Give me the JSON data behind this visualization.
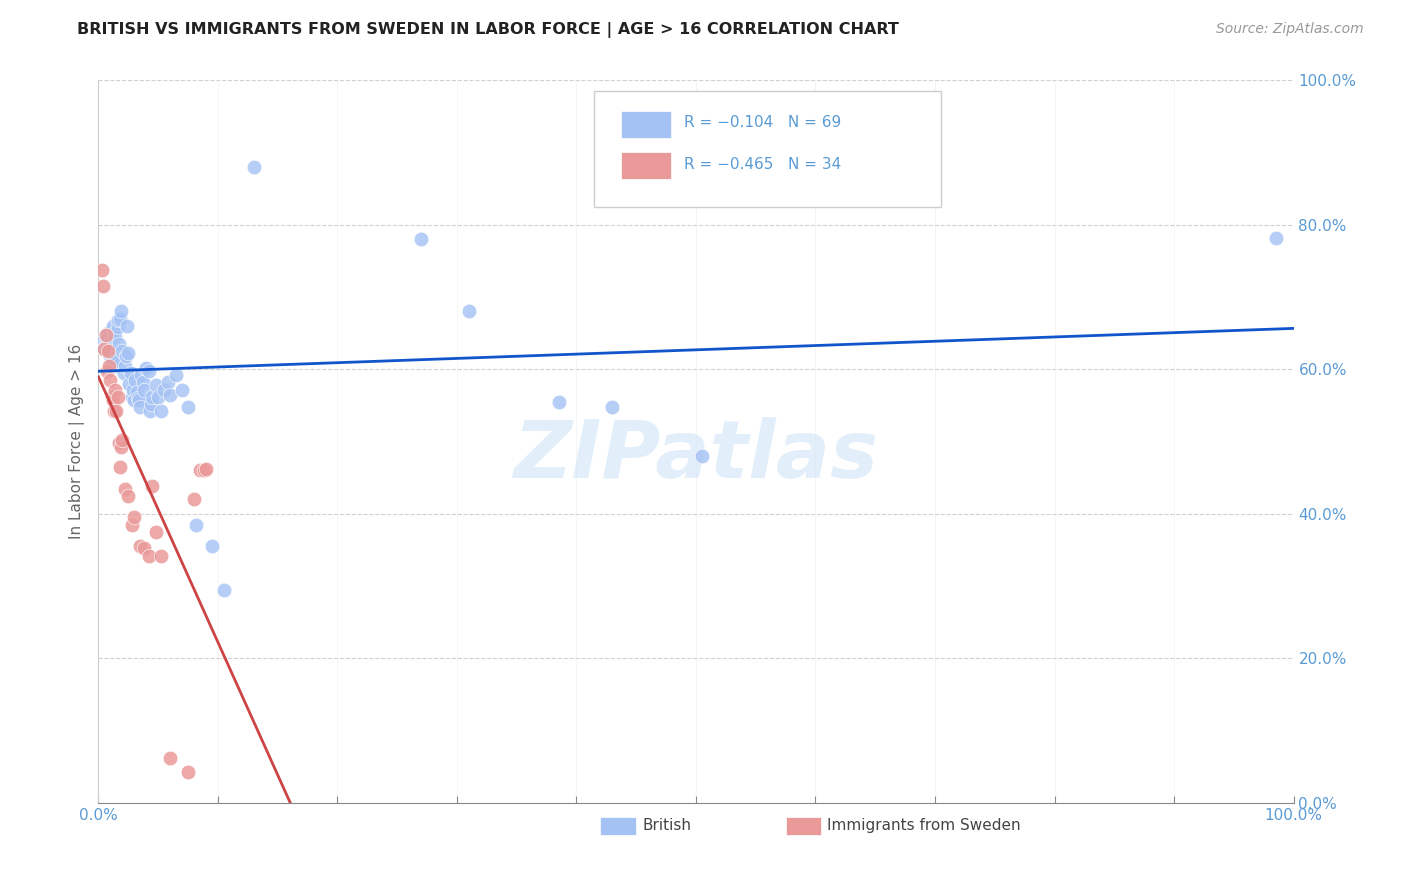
{
  "title": "BRITISH VS IMMIGRANTS FROM SWEDEN IN LABOR FORCE | AGE > 16 CORRELATION CHART",
  "source": "Source: ZipAtlas.com",
  "ylabel": "In Labor Force | Age > 16",
  "blue_label": "British",
  "pink_label": "Immigrants from Sweden",
  "blue_R": "R = −0.104",
  "blue_N": "N = 69",
  "pink_R": "R = −0.465",
  "pink_N": "N = 34",
  "blue_color": "#a4c2f4",
  "pink_color": "#ea9999",
  "blue_line_color": "#1155cc",
  "pink_line_color": "#cc4444",
  "pink_line_dashed_color": "#e06666",
  "watermark": "ZIPatlas",
  "blue_points": [
    [
      0.003,
      0.635
    ],
    [
      0.004,
      0.63
    ],
    [
      0.005,
      0.64
    ],
    [
      0.006,
      0.648
    ],
    [
      0.006,
      0.638
    ],
    [
      0.007,
      0.642
    ],
    [
      0.007,
      0.635
    ],
    [
      0.008,
      0.65
    ],
    [
      0.008,
      0.645
    ],
    [
      0.009,
      0.625
    ],
    [
      0.009,
      0.63
    ],
    [
      0.01,
      0.618
    ],
    [
      0.01,
      0.635
    ],
    [
      0.011,
      0.615
    ],
    [
      0.011,
      0.61
    ],
    [
      0.012,
      0.655
    ],
    [
      0.012,
      0.66
    ],
    [
      0.013,
      0.65
    ],
    [
      0.014,
      0.645
    ],
    [
      0.015,
      0.605
    ],
    [
      0.015,
      0.612
    ],
    [
      0.016,
      0.658
    ],
    [
      0.016,
      0.668
    ],
    [
      0.017,
      0.635
    ],
    [
      0.018,
      0.67
    ],
    [
      0.019,
      0.68
    ],
    [
      0.02,
      0.625
    ],
    [
      0.021,
      0.595
    ],
    [
      0.022,
      0.605
    ],
    [
      0.023,
      0.618
    ],
    [
      0.024,
      0.66
    ],
    [
      0.025,
      0.622
    ],
    [
      0.026,
      0.58
    ],
    [
      0.027,
      0.595
    ],
    [
      0.028,
      0.562
    ],
    [
      0.029,
      0.572
    ],
    [
      0.03,
      0.558
    ],
    [
      0.031,
      0.585
    ],
    [
      0.032,
      0.568
    ],
    [
      0.033,
      0.56
    ],
    [
      0.034,
      0.558
    ],
    [
      0.035,
      0.548
    ],
    [
      0.036,
      0.592
    ],
    [
      0.037,
      0.582
    ],
    [
      0.038,
      0.572
    ],
    [
      0.04,
      0.602
    ],
    [
      0.042,
      0.598
    ],
    [
      0.043,
      0.542
    ],
    [
      0.044,
      0.552
    ],
    [
      0.045,
      0.562
    ],
    [
      0.048,
      0.578
    ],
    [
      0.05,
      0.562
    ],
    [
      0.052,
      0.542
    ],
    [
      0.055,
      0.572
    ],
    [
      0.058,
      0.582
    ],
    [
      0.06,
      0.565
    ],
    [
      0.065,
      0.592
    ],
    [
      0.07,
      0.572
    ],
    [
      0.075,
      0.548
    ],
    [
      0.082,
      0.385
    ],
    [
      0.095,
      0.355
    ],
    [
      0.105,
      0.295
    ],
    [
      0.13,
      0.88
    ],
    [
      0.27,
      0.78
    ],
    [
      0.31,
      0.68
    ],
    [
      0.385,
      0.555
    ],
    [
      0.43,
      0.548
    ],
    [
      0.505,
      0.48
    ],
    [
      0.985,
      0.782
    ]
  ],
  "pink_points": [
    [
      0.003,
      0.738
    ],
    [
      0.004,
      0.715
    ],
    [
      0.005,
      0.628
    ],
    [
      0.006,
      0.648
    ],
    [
      0.007,
      0.598
    ],
    [
      0.008,
      0.625
    ],
    [
      0.009,
      0.605
    ],
    [
      0.01,
      0.585
    ],
    [
      0.011,
      0.562
    ],
    [
      0.012,
      0.558
    ],
    [
      0.013,
      0.542
    ],
    [
      0.014,
      0.572
    ],
    [
      0.015,
      0.542
    ],
    [
      0.016,
      0.562
    ],
    [
      0.017,
      0.498
    ],
    [
      0.018,
      0.465
    ],
    [
      0.019,
      0.492
    ],
    [
      0.02,
      0.502
    ],
    [
      0.022,
      0.435
    ],
    [
      0.025,
      0.425
    ],
    [
      0.028,
      0.385
    ],
    [
      0.03,
      0.395
    ],
    [
      0.035,
      0.355
    ],
    [
      0.038,
      0.352
    ],
    [
      0.042,
      0.342
    ],
    [
      0.045,
      0.438
    ],
    [
      0.048,
      0.375
    ],
    [
      0.052,
      0.342
    ],
    [
      0.06,
      0.062
    ],
    [
      0.075,
      0.042
    ],
    [
      0.08,
      0.42
    ],
    [
      0.085,
      0.46
    ],
    [
      0.088,
      0.46
    ],
    [
      0.09,
      0.462
    ]
  ]
}
